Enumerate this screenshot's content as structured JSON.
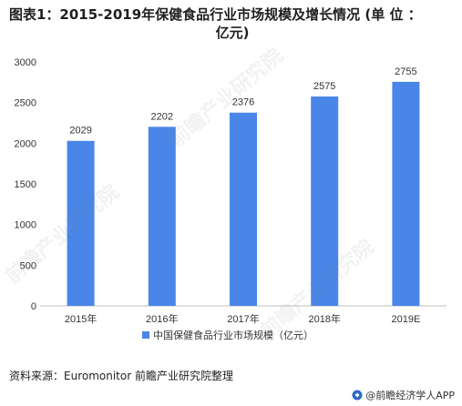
{
  "title": {
    "line1": "图表1：2015-2019年保健食品行业市场规模及增长情况 (单 位 ：",
    "line2": "亿元)"
  },
  "chart_data": {
    "type": "bar",
    "categories": [
      "2015年",
      "2016年",
      "2017年",
      "2018年",
      "2019E"
    ],
    "series": [
      {
        "name": "中国保健食品行业市场规模（亿元）",
        "values": [
          2029,
          2202,
          2376,
          2575,
          2755
        ],
        "color": "#4a86e8"
      }
    ],
    "ylim": [
      0,
      3000
    ],
    "yticks": [
      "0",
      "500",
      "1000",
      "1500",
      "2000",
      "2500",
      "3000"
    ],
    "ytick_values": [
      0,
      500,
      1000,
      1500,
      2000,
      2500,
      3000
    ],
    "grid": false,
    "legend_position": "bottom-center",
    "data_labels": [
      "2029",
      "2202",
      "2376",
      "2575",
      "2755"
    ]
  },
  "source": "资料来源：Euromonitor 前瞻产业研究院整理",
  "brand": {
    "label": "@前瞻经济学人APP",
    "icon": "qianzhan-logo-icon"
  },
  "watermark": "前瞻产业研究院"
}
